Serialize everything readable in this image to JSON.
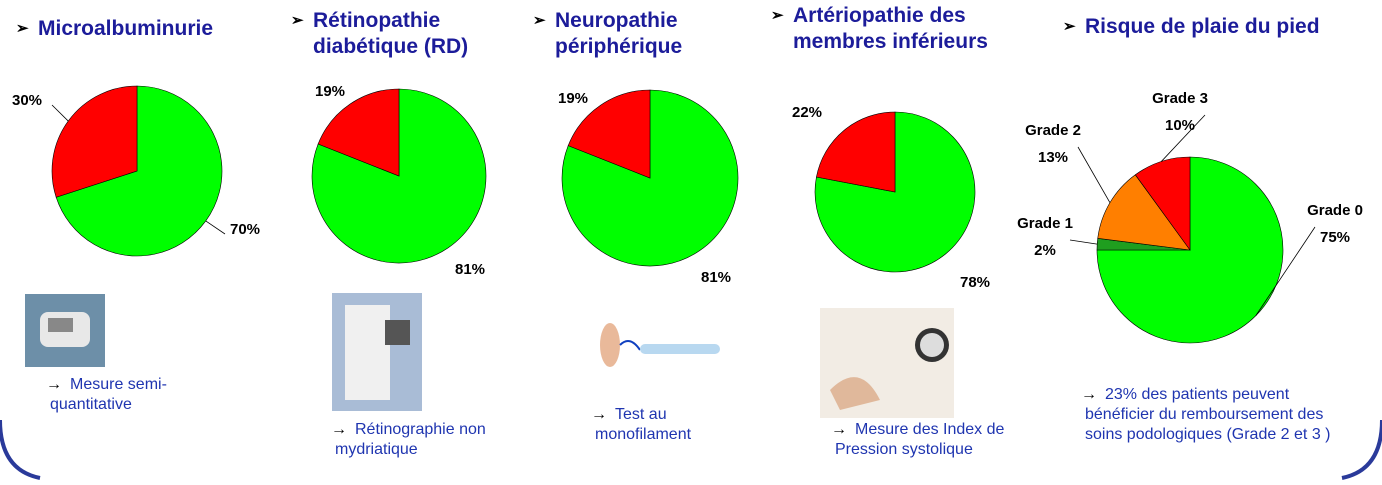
{
  "chart_data": [
    {
      "type": "pie",
      "title": "Microalbuminurie",
      "values": [
        70,
        30
      ],
      "value_labels": [
        "70%",
        "30%"
      ],
      "colors": [
        "#00ff00",
        "#ff0000"
      ],
      "caption": "Mesure semi-quantitative"
    },
    {
      "type": "pie",
      "title": "Rétinopathie diabétique (RD)",
      "values": [
        81,
        19
      ],
      "value_labels": [
        "81%",
        "19%"
      ],
      "colors": [
        "#00ff00",
        "#ff0000"
      ],
      "caption": "Rétinographie non mydriatique"
    },
    {
      "type": "pie",
      "title": "Neuropathie périphérique",
      "values": [
        81,
        19
      ],
      "value_labels": [
        "81%",
        "19%"
      ],
      "colors": [
        "#00ff00",
        "#ff0000"
      ],
      "caption": "Test au monofilament"
    },
    {
      "type": "pie",
      "title": "Artériopathie des membres inférieurs",
      "values": [
        78,
        22
      ],
      "value_labels": [
        "78%",
        "22%"
      ],
      "colors": [
        "#00ff00",
        "#ff0000"
      ],
      "caption": "Mesure des Index de Pression systolique"
    },
    {
      "type": "pie",
      "title": "Risque de plaie du pied",
      "categories": [
        "Grade 0",
        "Grade 1",
        "Grade 2",
        "Grade 3"
      ],
      "values": [
        75,
        2,
        13,
        10
      ],
      "value_labels": [
        "75%",
        "2%",
        "13%",
        "10%"
      ],
      "colors": [
        "#00ff00",
        "#1f9e1f",
        "#ff7f00",
        "#ff0000"
      ],
      "caption": "23% des patients peuvent bénéficier du remboursement des soins podologiques (Grade 2 et 3 )"
    }
  ]
}
